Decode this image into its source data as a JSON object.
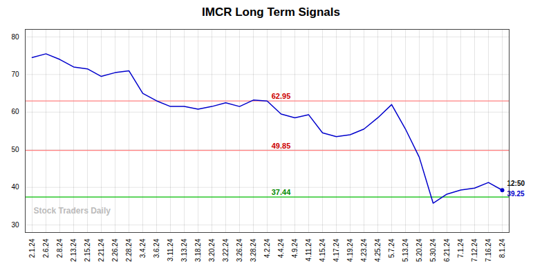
{
  "chart_data": {
    "type": "line",
    "title": "IMCR Long Term Signals",
    "categories": [
      "2.1.24",
      "2.6.24",
      "2.8.24",
      "2.13.24",
      "2.15.24",
      "2.21.24",
      "2.26.24",
      "2.28.24",
      "3.4.24",
      "3.6.24",
      "3.11.24",
      "3.13.24",
      "3.18.24",
      "3.20.24",
      "3.22.24",
      "3.26.24",
      "3.28.24",
      "4.2.24",
      "4.4.24",
      "4.9.24",
      "4.11.24",
      "4.15.24",
      "4.17.24",
      "4.19.24",
      "4.23.24",
      "4.25.24",
      "5.7.24",
      "5.13.24",
      "5.20.24",
      "5.30.24",
      "6.21.24",
      "7.1.24",
      "7.12.24",
      "7.16.24",
      "8.1.24"
    ],
    "values": [
      74.5,
      75.5,
      74.0,
      72.0,
      71.5,
      69.5,
      70.5,
      71.0,
      65.0,
      63.0,
      61.5,
      61.5,
      60.8,
      61.5,
      62.5,
      61.5,
      63.2,
      62.95,
      59.5,
      58.5,
      59.3,
      54.5,
      53.5,
      54.0,
      55.5,
      58.5,
      62.0,
      55.5,
      48.0,
      35.8,
      38.2,
      39.3,
      39.8,
      41.3,
      39.25
    ],
    "color": "#0000cc",
    "reference_lines": [
      {
        "value": 62.95,
        "label": "62.95",
        "color": "#ff8080",
        "label_color": "#cc0000"
      },
      {
        "value": 49.85,
        "label": "49.85",
        "color": "#ff8080",
        "label_color": "#cc0000"
      },
      {
        "value": 37.44,
        "label": "37.44",
        "color": "#00bb00",
        "label_color": "#008800"
      }
    ],
    "last_point_labels": {
      "time": "12:50",
      "value": "39.25"
    },
    "watermark": "Stock Traders Daily",
    "ylim": [
      28,
      82
    ],
    "yticks": [
      30,
      40,
      50,
      60,
      70,
      80
    ],
    "grid": true
  }
}
